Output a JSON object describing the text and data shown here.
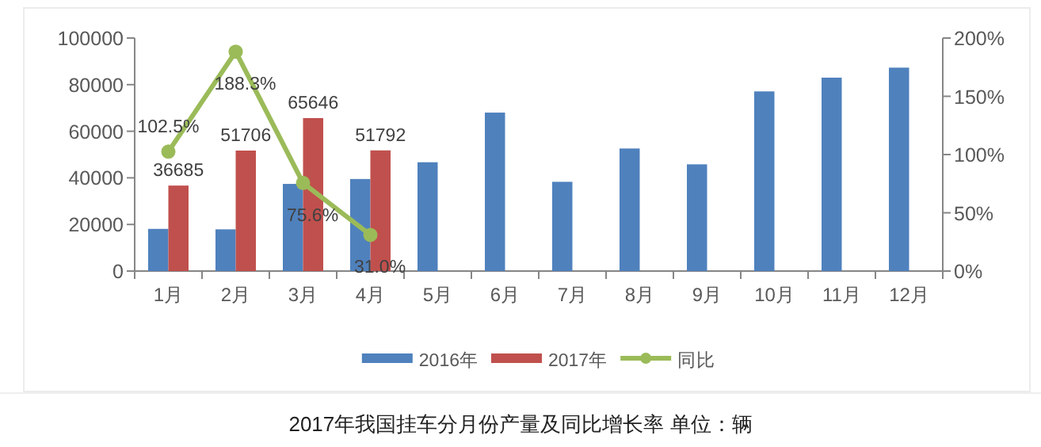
{
  "chart_data": {
    "type": "bar",
    "title": "2017年我国挂车分月份产量及同比增长率 单位：辆",
    "categories": [
      "1月",
      "2月",
      "3月",
      "4月",
      "5月",
      "6月",
      "7月",
      "8月",
      "9月",
      "10月",
      "11月",
      "12月"
    ],
    "series": [
      {
        "name": "2016年",
        "color": "#4f81bd",
        "values": [
          18100,
          17900,
          37400,
          39500,
          46700,
          68000,
          38300,
          52600,
          45800,
          77100,
          83000,
          87300
        ]
      },
      {
        "name": "2017年",
        "color": "#c0504d",
        "values": [
          36685,
          51706,
          65646,
          51792,
          null,
          null,
          null,
          null,
          null,
          null,
          null,
          null
        ],
        "value_labels": [
          "36685",
          "51706",
          "65646",
          "51792",
          null,
          null,
          null,
          null,
          null,
          null,
          null,
          null
        ]
      },
      {
        "name": "同比",
        "type": "line",
        "axis": "y2",
        "marker": "circle",
        "color": "#9bbb59",
        "values": [
          102.5,
          188.3,
          75.6,
          31.0,
          null,
          null,
          null,
          null,
          null,
          null,
          null,
          null
        ],
        "value_labels": [
          "102.5%",
          "188.3%",
          "75.6%",
          "31.0%",
          null,
          null,
          null,
          null,
          null,
          null,
          null,
          null
        ]
      }
    ],
    "ylim": [
      0,
      100000
    ],
    "yticks": [
      0,
      20000,
      40000,
      60000,
      80000,
      100000
    ],
    "y2lim": [
      0,
      200
    ],
    "y2ticks": [
      {
        "value": 0,
        "label": "0%"
      },
      {
        "value": 50,
        "label": "50%"
      },
      {
        "value": 100,
        "label": "100%"
      },
      {
        "value": 150,
        "label": "150%"
      },
      {
        "value": 200,
        "label": "200%"
      }
    ],
    "legend": "bottom"
  }
}
